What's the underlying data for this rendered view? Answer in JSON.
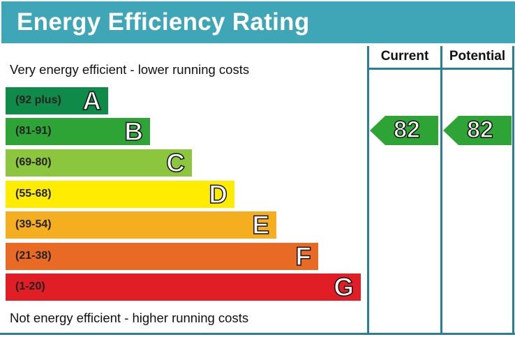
{
  "title": "Energy Efficiency Rating",
  "columns": {
    "current": "Current",
    "potential": "Potential"
  },
  "top_note": "Very energy efficient - lower running costs",
  "bottom_note": "Not energy efficient - higher running costs",
  "chart_data": {
    "type": "bar",
    "categories": [
      "A",
      "B",
      "C",
      "D",
      "E",
      "F",
      "G"
    ],
    "bands": [
      {
        "letter": "A",
        "range": "(92 plus)",
        "color": "#0f8a48"
      },
      {
        "letter": "B",
        "range": "(81-91)",
        "color": "#2ea437"
      },
      {
        "letter": "C",
        "range": "(69-80)",
        "color": "#8cc63f"
      },
      {
        "letter": "D",
        "range": "(55-68)",
        "color": "#ffec00"
      },
      {
        "letter": "E",
        "range": "(39-54)",
        "color": "#f4ae1f"
      },
      {
        "letter": "F",
        "range": "(21-38)",
        "color": "#e96a24"
      },
      {
        "letter": "G",
        "range": "(1-20)",
        "color": "#e11e25"
      }
    ],
    "current": {
      "value": 82,
      "band": "B",
      "color": "#2ea437"
    },
    "potential": {
      "value": 82,
      "band": "B",
      "color": "#2ea437"
    }
  }
}
